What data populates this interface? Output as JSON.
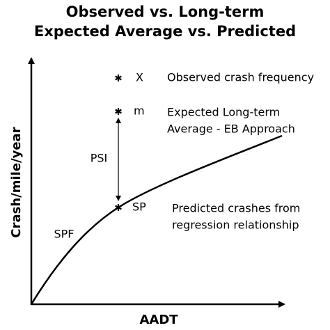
{
  "title": {
    "lines": [
      "Observed vs. Long-term",
      "Expected Average vs. Predicted"
    ]
  },
  "axes": {
    "x_label": "AADT",
    "y_label": "Crash/mile/year"
  },
  "curve_label": "SPF",
  "gap_label": "PSI",
  "points": [
    {
      "label": "X",
      "description": [
        "Observed crash frequency"
      ]
    },
    {
      "label": "m",
      "description": [
        "Expected Long-term",
        "Average - EB Approach"
      ]
    },
    {
      "label": "SP",
      "description": [
        "Predicted crashes from",
        "regression relationship"
      ]
    }
  ]
}
